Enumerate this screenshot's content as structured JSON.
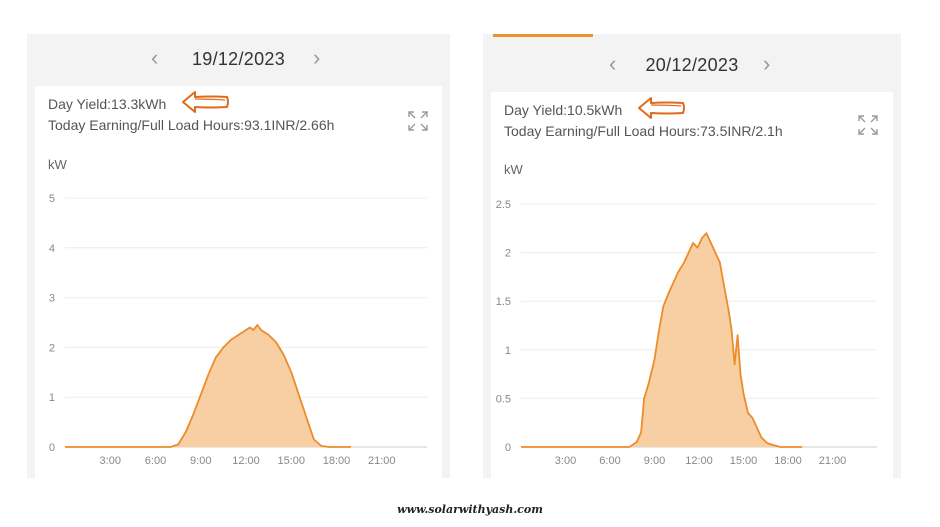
{
  "panels": [
    {
      "date": "19/12/2023",
      "day_yield": "Day Yield:13.3kWh",
      "earning": "Today Earning/Full Load Hours:93.1INR/2.66h",
      "unit": "kW"
    },
    {
      "date": "20/12/2023",
      "day_yield": "Day Yield:10.5kWh",
      "earning": "Today Earning/Full Load Hours:73.5INR/2.1h",
      "unit": "kW"
    }
  ],
  "icons": {
    "prev": "chevron-left-icon",
    "next": "chevron-right-icon",
    "expand": "expand-icon",
    "annotation": "hand-drawn-arrow-icon"
  },
  "colors": {
    "line": "#ec8c2a",
    "fill": "#f8cfa2",
    "accent": "#f0912e",
    "grid": "#ececec"
  },
  "footer": {
    "url": "www.solarwithyash.com"
  },
  "chart_data": [
    {
      "type": "area",
      "title": "",
      "xlabel": "",
      "ylabel": "kW",
      "xlim": [
        0,
        24
      ],
      "ylim": [
        0,
        5
      ],
      "x_ticks": [
        "3:00",
        "6:00",
        "9:00",
        "12:00",
        "15:00",
        "18:00",
        "21:00"
      ],
      "y_ticks": [
        "0",
        "1",
        "2",
        "3",
        "4",
        "5"
      ],
      "grid": true,
      "series": [
        {
          "x": [
            7.0,
            7.5,
            8.0,
            8.5,
            9.0,
            9.5,
            10.0,
            10.5,
            11.0,
            11.25,
            11.5,
            11.75,
            12.0,
            12.25,
            12.5,
            12.75,
            13.0,
            13.25,
            13.5,
            14.0,
            14.5,
            15.0,
            15.5,
            16.0,
            16.5,
            17.0,
            17.5,
            18.0
          ],
          "y": [
            0,
            0.05,
            0.3,
            0.65,
            1.05,
            1.45,
            1.8,
            2.0,
            2.15,
            2.2,
            2.25,
            2.3,
            2.35,
            2.4,
            2.35,
            2.45,
            2.35,
            2.3,
            2.25,
            2.1,
            1.85,
            1.5,
            1.05,
            0.6,
            0.15,
            0.02,
            0,
            0
          ]
        }
      ]
    },
    {
      "type": "area",
      "title": "",
      "xlabel": "",
      "ylabel": "kW",
      "xlim": [
        0,
        24
      ],
      "ylim": [
        0,
        2.5
      ],
      "x_ticks": [
        "3:00",
        "6:00",
        "9:00",
        "12:00",
        "15:00",
        "18:00",
        "21:00"
      ],
      "y_ticks": [
        "0",
        "0.5",
        "1",
        "1.5",
        "2",
        "2.5"
      ],
      "grid": true,
      "series": [
        {
          "x": [
            7.3,
            7.8,
            8.1,
            8.3,
            8.6,
            9.0,
            9.3,
            9.6,
            10.0,
            10.3,
            10.6,
            11.0,
            11.3,
            11.6,
            11.9,
            12.2,
            12.5,
            12.8,
            13.1,
            13.4,
            13.7,
            14.0,
            14.2,
            14.4,
            14.6,
            14.8,
            15.0,
            15.3,
            15.6,
            15.9,
            16.2,
            16.6,
            17.0,
            17.5
          ],
          "y": [
            0,
            0.05,
            0.15,
            0.5,
            0.65,
            0.9,
            1.2,
            1.45,
            1.6,
            1.7,
            1.8,
            1.9,
            2.0,
            2.1,
            2.05,
            2.15,
            2.2,
            2.1,
            2.0,
            1.9,
            1.65,
            1.4,
            1.2,
            0.85,
            1.15,
            0.75,
            0.55,
            0.35,
            0.3,
            0.2,
            0.1,
            0.04,
            0.02,
            0
          ]
        }
      ]
    }
  ]
}
